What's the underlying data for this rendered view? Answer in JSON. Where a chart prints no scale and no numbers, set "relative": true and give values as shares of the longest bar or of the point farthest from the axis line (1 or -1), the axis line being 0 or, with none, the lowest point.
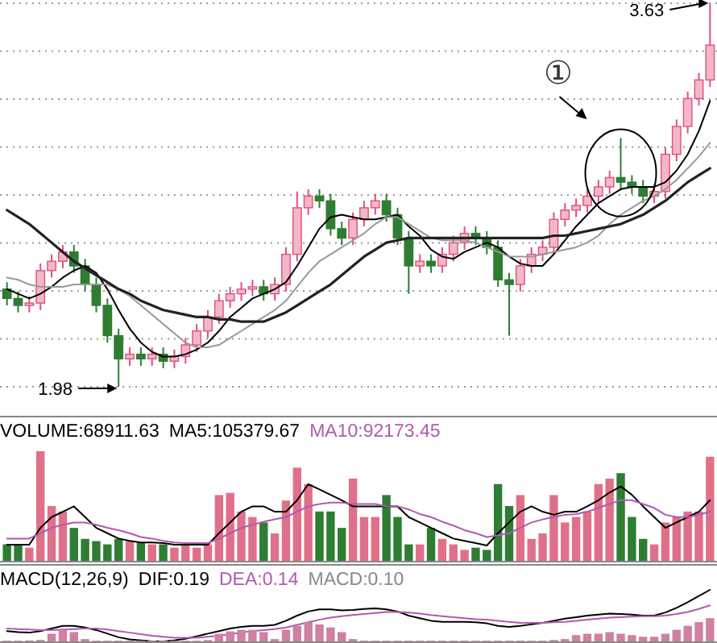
{
  "chart_data": [
    {
      "type": "candlestick",
      "categories": [
        null,
        null,
        null,
        null,
        null,
        null,
        null,
        null,
        null,
        null,
        null,
        null,
        null,
        null,
        null,
        null,
        null,
        null,
        null,
        null,
        null,
        null,
        null,
        null,
        null,
        null,
        null,
        null,
        null,
        null,
        null,
        null,
        null,
        null,
        null,
        null,
        null,
        null,
        null,
        null,
        null,
        null,
        null,
        null,
        null,
        null,
        null,
        null,
        null,
        null,
        null,
        null,
        null,
        null,
        null,
        null,
        null,
        null,
        null,
        null,
        null,
        null,
        null,
        null
      ],
      "ohlc": [
        [
          2.4,
          2.43,
          2.33,
          2.36
        ],
        [
          2.36,
          2.39,
          2.3,
          2.33
        ],
        [
          2.33,
          2.37,
          2.3,
          2.34
        ],
        [
          2.34,
          2.51,
          2.31,
          2.48
        ],
        [
          2.48,
          2.55,
          2.45,
          2.52
        ],
        [
          2.52,
          2.59,
          2.49,
          2.56
        ],
        [
          2.56,
          2.59,
          2.47,
          2.5
        ],
        [
          2.5,
          2.53,
          2.39,
          2.42
        ],
        [
          2.42,
          2.45,
          2.3,
          2.33
        ],
        [
          2.33,
          2.36,
          2.17,
          2.2
        ],
        [
          2.2,
          2.23,
          1.98,
          2.1
        ],
        [
          2.1,
          2.15,
          2.07,
          2.12
        ],
        [
          2.12,
          2.15,
          2.07,
          2.1
        ],
        [
          2.1,
          2.15,
          2.07,
          2.12
        ],
        [
          2.12,
          2.15,
          2.06,
          2.09
        ],
        [
          2.09,
          2.14,
          2.06,
          2.11
        ],
        [
          2.11,
          2.19,
          2.08,
          2.16
        ],
        [
          2.16,
          2.25,
          2.13,
          2.22
        ],
        [
          2.22,
          2.31,
          2.19,
          2.28
        ],
        [
          2.28,
          2.38,
          2.25,
          2.35
        ],
        [
          2.35,
          2.41,
          2.32,
          2.38
        ],
        [
          2.38,
          2.43,
          2.35,
          2.4
        ],
        [
          2.4,
          2.44,
          2.37,
          2.41
        ],
        [
          2.41,
          2.44,
          2.35,
          2.38
        ],
        [
          2.38,
          2.45,
          2.35,
          2.42
        ],
        [
          2.42,
          2.58,
          2.39,
          2.55
        ],
        [
          2.55,
          2.82,
          2.52,
          2.75
        ],
        [
          2.75,
          2.83,
          2.72,
          2.8
        ],
        [
          2.8,
          2.83,
          2.75,
          2.78
        ],
        [
          2.78,
          2.81,
          2.63,
          2.66
        ],
        [
          2.66,
          2.69,
          2.59,
          2.62
        ],
        [
          2.62,
          2.73,
          2.59,
          2.7
        ],
        [
          2.7,
          2.78,
          2.67,
          2.75
        ],
        [
          2.75,
          2.81,
          2.72,
          2.78
        ],
        [
          2.78,
          2.81,
          2.69,
          2.72
        ],
        [
          2.72,
          2.75,
          2.59,
          2.62
        ],
        [
          2.62,
          2.65,
          2.38,
          2.5
        ],
        [
          2.5,
          2.55,
          2.47,
          2.52
        ],
        [
          2.52,
          2.55,
          2.47,
          2.5
        ],
        [
          2.5,
          2.58,
          2.47,
          2.55
        ],
        [
          2.55,
          2.63,
          2.52,
          2.6
        ],
        [
          2.6,
          2.67,
          2.57,
          2.64
        ],
        [
          2.64,
          2.67,
          2.59,
          2.62
        ],
        [
          2.62,
          2.65,
          2.55,
          2.58
        ],
        [
          2.58,
          2.61,
          2.41,
          2.44
        ],
        [
          2.44,
          2.47,
          2.2,
          2.42
        ],
        [
          2.42,
          2.53,
          2.39,
          2.5
        ],
        [
          2.5,
          2.58,
          2.47,
          2.55
        ],
        [
          2.55,
          2.61,
          2.52,
          2.58
        ],
        [
          2.58,
          2.73,
          2.55,
          2.7
        ],
        [
          2.7,
          2.77,
          2.67,
          2.74
        ],
        [
          2.74,
          2.79,
          2.71,
          2.76
        ],
        [
          2.76,
          2.83,
          2.73,
          2.8
        ],
        [
          2.8,
          2.87,
          2.77,
          2.84
        ],
        [
          2.84,
          2.91,
          2.81,
          2.88
        ],
        [
          2.88,
          3.05,
          2.83,
          2.86
        ],
        [
          2.86,
          2.89,
          2.81,
          2.84
        ],
        [
          2.84,
          2.87,
          2.77,
          2.8
        ],
        [
          2.8,
          2.85,
          2.77,
          2.82
        ],
        [
          2.82,
          3.01,
          2.79,
          2.98
        ],
        [
          2.98,
          3.13,
          2.95,
          3.1
        ],
        [
          3.1,
          3.25,
          3.07,
          3.22
        ],
        [
          3.22,
          3.33,
          3.19,
          3.3
        ],
        [
          3.3,
          3.63,
          3.27,
          3.45
        ]
      ],
      "series": [
        {
          "type": "line",
          "color": "#000000",
          "values": [
            2.4,
            2.38,
            2.36,
            2.38,
            2.41,
            2.45,
            2.48,
            2.5,
            2.47,
            2.4,
            2.31,
            2.23,
            2.17,
            2.13,
            2.11,
            2.11,
            2.12,
            2.14,
            2.17,
            2.22,
            2.28,
            2.32,
            2.36,
            2.38,
            2.4,
            2.43,
            2.5,
            2.58,
            2.66,
            2.71,
            2.72,
            2.71,
            2.7,
            2.7,
            2.71,
            2.72,
            2.67,
            2.63,
            2.57,
            2.54,
            2.53,
            2.56,
            2.58,
            2.6,
            2.58,
            2.54,
            2.51,
            2.5,
            2.5,
            2.55,
            2.61,
            2.67,
            2.72,
            2.77,
            2.8,
            2.83,
            2.84,
            2.84,
            2.84,
            2.86,
            2.91,
            2.98,
            3.08,
            3.21
          ]
        },
        {
          "type": "line",
          "color": "#999999",
          "values": [
            2.45,
            2.44,
            2.42,
            2.41,
            2.41,
            2.41,
            2.42,
            2.42,
            2.42,
            2.42,
            2.4,
            2.37,
            2.33,
            2.29,
            2.25,
            2.21,
            2.17,
            2.15,
            2.15,
            2.16,
            2.19,
            2.22,
            2.25,
            2.28,
            2.31,
            2.35,
            2.41,
            2.47,
            2.52,
            2.55,
            2.58,
            2.61,
            2.64,
            2.68,
            2.71,
            2.71,
            2.68,
            2.65,
            2.62,
            2.61,
            2.61,
            2.61,
            2.6,
            2.58,
            2.56,
            2.54,
            2.54,
            2.54,
            2.55,
            2.56,
            2.57,
            2.58,
            2.6,
            2.63,
            2.68,
            2.72,
            2.75,
            2.78,
            2.8,
            2.83,
            2.87,
            2.92,
            2.97,
            3.03
          ]
        },
        {
          "type": "line",
          "color": "#222222",
          "values": [
            2.74,
            2.71,
            2.68,
            2.64,
            2.6,
            2.56,
            2.52,
            2.49,
            2.46,
            2.43,
            2.4,
            2.38,
            2.35,
            2.33,
            2.31,
            2.3,
            2.29,
            2.28,
            2.28,
            2.27,
            2.27,
            2.26,
            2.26,
            2.26,
            2.28,
            2.3,
            2.33,
            2.36,
            2.39,
            2.42,
            2.46,
            2.5,
            2.54,
            2.57,
            2.6,
            2.61,
            2.62,
            2.62,
            2.62,
            2.62,
            2.62,
            2.62,
            2.62,
            2.62,
            2.62,
            2.62,
            2.62,
            2.62,
            2.62,
            2.63,
            2.63,
            2.64,
            2.65,
            2.66,
            2.67,
            2.68,
            2.7,
            2.72,
            2.75,
            2.78,
            2.82,
            2.86,
            2.89,
            2.92
          ]
        }
      ],
      "grid": true,
      "annotations": [
        "1.98",
        "3.63",
        "①"
      ]
    },
    {
      "type": "bar",
      "relative": true,
      "title": "VOLUME:68911.63",
      "annotations": [
        "MA5:105379.67",
        "MA10:92173.45"
      ],
      "categories": [
        null,
        null,
        null,
        null,
        null,
        null,
        null,
        null,
        null,
        null,
        null,
        null,
        null,
        null,
        null,
        null,
        null,
        null,
        null,
        null,
        null,
        null,
        null,
        null,
        null,
        null,
        null,
        null,
        null,
        null,
        null,
        null,
        null,
        null,
        null,
        null,
        null,
        null,
        null,
        null,
        null,
        null,
        null,
        null,
        null,
        null,
        null,
        null,
        null,
        null,
        null,
        null,
        null,
        null,
        null,
        null,
        null,
        null,
        null,
        null,
        null,
        null,
        null,
        null
      ],
      "values": [
        0.15,
        0.15,
        0.12,
        1.0,
        0.5,
        0.45,
        0.3,
        0.2,
        0.18,
        0.15,
        0.2,
        0.18,
        0.17,
        0.15,
        0.15,
        0.12,
        0.15,
        0.12,
        0.15,
        0.6,
        0.62,
        0.45,
        0.4,
        0.35,
        0.25,
        0.55,
        0.85,
        0.7,
        0.45,
        0.45,
        0.3,
        0.75,
        0.4,
        0.4,
        0.6,
        0.4,
        0.15,
        0.15,
        0.3,
        0.2,
        0.15,
        0.1,
        0.12,
        0.1,
        0.7,
        0.5,
        0.6,
        0.2,
        0.25,
        0.6,
        0.35,
        0.4,
        0.45,
        0.7,
        0.75,
        0.8,
        0.4,
        0.2,
        0.15,
        0.35,
        0.4,
        0.45,
        0.45,
        0.95
      ],
      "colors": [
        "#2e7d32",
        "#2e7d32",
        "#e0708a",
        "#e0708a",
        "#e0708a",
        "#e0708a",
        "#2e7d32",
        "#2e7d32",
        "#2e7d32",
        "#2e7d32",
        "#2e7d32",
        "#e0708a",
        "#2e7d32",
        "#e0708a",
        "#2e7d32",
        "#e0708a",
        "#e0708a",
        "#e0708a",
        "#e0708a",
        "#e0708a",
        "#e0708a",
        "#e0708a",
        "#e0708a",
        "#2e7d32",
        "#e0708a",
        "#e0708a",
        "#e0708a",
        "#e0708a",
        "#2e7d32",
        "#2e7d32",
        "#2e7d32",
        "#e0708a",
        "#e0708a",
        "#e0708a",
        "#2e7d32",
        "#2e7d32",
        "#2e7d32",
        "#e0708a",
        "#2e7d32",
        "#e0708a",
        "#e0708a",
        "#e0708a",
        "#2e7d32",
        "#2e7d32",
        "#2e7d32",
        "#2e7d32",
        "#e0708a",
        "#e0708a",
        "#e0708a",
        "#e0708a",
        "#e0708a",
        "#e0708a",
        "#e0708a",
        "#e0708a",
        "#e0708a",
        "#2e7d32",
        "#2e7d32",
        "#2e7d32",
        "#e0708a",
        "#e0708a",
        "#e0708a",
        "#e0708a",
        "#e0708a",
        "#e0708a"
      ]
    },
    {
      "type": "line",
      "relative": true,
      "categories": [
        null,
        null,
        null,
        null,
        null,
        null,
        null,
        null,
        null,
        null,
        null,
        null,
        null,
        null,
        null,
        null,
        null,
        null,
        null,
        null,
        null,
        null,
        null,
        null,
        null,
        null,
        null,
        null,
        null,
        null,
        null,
        null,
        null,
        null,
        null,
        null,
        null,
        null,
        null,
        null,
        null,
        null,
        null,
        null,
        null,
        null,
        null,
        null,
        null,
        null,
        null,
        null,
        null,
        null,
        null,
        null,
        null,
        null,
        null,
        null,
        null,
        null,
        null,
        null
      ],
      "series": [
        {
          "color": "#000000",
          "values": [
            0.21,
            0.21,
            0.21,
            0.43,
            0.57,
            0.64,
            0.71,
            0.57,
            0.43,
            0.36,
            0.29,
            0.26,
            0.24,
            0.24,
            0.23,
            0.21,
            0.21,
            0.21,
            0.21,
            0.36,
            0.5,
            0.64,
            0.71,
            0.71,
            0.64,
            0.64,
            0.79,
            1,
            0.93,
            0.86,
            0.79,
            0.71,
            0.71,
            0.71,
            0.71,
            0.71,
            0.57,
            0.5,
            0.43,
            0.36,
            0.29,
            0.26,
            0.23,
            0.2,
            0.36,
            0.5,
            0.64,
            0.71,
            0.64,
            0.6,
            0.64,
            0.64,
            0.71,
            0.79,
            0.89,
            0.97,
            0.86,
            0.71,
            0.57,
            0.43,
            0.5,
            0.57,
            0.64,
            0.79
          ]
        },
        {
          "color": "#b05ab0",
          "values": [
            0.29,
            0.29,
            0.29,
            0.36,
            0.43,
            0.47,
            0.5,
            0.5,
            0.47,
            0.43,
            0.4,
            0.36,
            0.31,
            0.29,
            0.26,
            0.24,
            0.23,
            0.23,
            0.23,
            0.29,
            0.36,
            0.43,
            0.47,
            0.51,
            0.54,
            0.57,
            0.64,
            0.71,
            0.74,
            0.76,
            0.76,
            0.74,
            0.74,
            0.74,
            0.71,
            0.71,
            0.67,
            0.61,
            0.57,
            0.51,
            0.46,
            0.4,
            0.36,
            0.31,
            0.33,
            0.36,
            0.43,
            0.5,
            0.54,
            0.57,
            0.6,
            0.61,
            0.64,
            0.69,
            0.74,
            0.79,
            0.79,
            0.74,
            0.69,
            0.6,
            0.57,
            0.57,
            0.6,
            0.64
          ]
        }
      ]
    },
    {
      "type": "line",
      "relative": true,
      "title": "MACD(12,26,9)",
      "annotations": [
        "DIF:0.19",
        "DEA:0.14",
        "MACD:0.10"
      ],
      "categories": [
        null,
        null,
        null,
        null,
        null,
        null,
        null,
        null,
        null,
        null,
        null,
        null,
        null,
        null,
        null,
        null,
        null,
        null,
        null,
        null,
        null,
        null,
        null,
        null,
        null,
        null,
        null,
        null,
        null,
        null,
        null,
        null,
        null,
        null,
        null,
        null,
        null,
        null,
        null,
        null,
        null,
        null,
        null,
        null,
        null,
        null,
        null,
        null,
        null,
        null,
        null,
        null,
        null,
        null,
        null,
        null,
        null,
        null,
        null,
        null,
        null,
        null,
        null,
        null
      ],
      "series": [
        {
          "color": "#000000",
          "values": [
            0.2,
            0.18,
            0.17,
            0.2,
            0.25,
            0.3,
            0.3,
            0.27,
            0.22,
            0.15,
            0.08,
            0.04,
            0.02,
            0,
            0,
            0.02,
            0.05,
            0.1,
            0.15,
            0.2,
            0.25,
            0.28,
            0.3,
            0.3,
            0.32,
            0.4,
            0.5,
            0.58,
            0.62,
            0.62,
            0.6,
            0.61,
            0.63,
            0.64,
            0.62,
            0.58,
            0.5,
            0.45,
            0.4,
            0.38,
            0.38,
            0.38,
            0.37,
            0.35,
            0.3,
            0.28,
            0.3,
            0.33,
            0.36,
            0.4,
            0.44,
            0.47,
            0.5,
            0.52,
            0.54,
            0.53,
            0.52,
            0.5,
            0.5,
            0.56,
            0.65,
            0.76,
            0.88,
            1
          ]
        },
        {
          "color": "#b05ab0",
          "values": [
            0.25,
            0.24,
            0.23,
            0.22,
            0.22,
            0.23,
            0.24,
            0.25,
            0.25,
            0.23,
            0.2,
            0.17,
            0.14,
            0.11,
            0.09,
            0.07,
            0.07,
            0.07,
            0.09,
            0.11,
            0.14,
            0.17,
            0.2,
            0.22,
            0.24,
            0.27,
            0.32,
            0.37,
            0.42,
            0.46,
            0.49,
            0.51,
            0.53,
            0.55,
            0.57,
            0.57,
            0.56,
            0.54,
            0.51,
            0.49,
            0.47,
            0.45,
            0.43,
            0.42,
            0.4,
            0.38,
            0.36,
            0.36,
            0.36,
            0.37,
            0.38,
            0.4,
            0.42,
            0.44,
            0.46,
            0.47,
            0.48,
            0.49,
            0.49,
            0.5,
            0.53,
            0.57,
            0.63,
            0.7
          ]
        }
      ]
    },
    {
      "type": "bar",
      "relative": true,
      "color": "#d080a0",
      "categories": [
        null,
        null,
        null,
        null,
        null,
        null,
        null,
        null,
        null,
        null,
        null,
        null,
        null,
        null,
        null,
        null,
        null,
        null,
        null,
        null,
        null,
        null,
        null,
        null,
        null,
        null,
        null,
        null,
        null,
        null,
        null,
        null,
        null,
        null,
        null,
        null,
        null,
        null,
        null,
        null,
        null,
        null,
        null,
        null,
        null,
        null,
        null,
        null,
        null,
        null,
        null,
        null,
        null,
        null,
        null,
        null,
        null,
        null,
        null,
        null,
        null,
        null,
        null,
        null
      ],
      "values": [
        0.03,
        0.03,
        0.04,
        0.06,
        0.33,
        0.5,
        0.4,
        0.1,
        0.03,
        0.03,
        0.03,
        0.03,
        0.03,
        0.03,
        0.03,
        0.03,
        0.03,
        0.03,
        0.06,
        0.33,
        0.43,
        0.5,
        0.5,
        0.4,
        0.1,
        0.5,
        0.67,
        0.83,
        0.73,
        0.6,
        0.4,
        0.1,
        0.03,
        0.03,
        0.03,
        0.03,
        0.03,
        0.03,
        0.03,
        0.03,
        0.03,
        0.03,
        0.03,
        0.03,
        0.03,
        0.03,
        0.03,
        0.03,
        0.03,
        0.06,
        0.1,
        0.27,
        0.33,
        0.33,
        0.4,
        0.33,
        0.27,
        0.2,
        0.2,
        0.33,
        0.5,
        0.67,
        0.83,
        1
      ]
    }
  ]
}
